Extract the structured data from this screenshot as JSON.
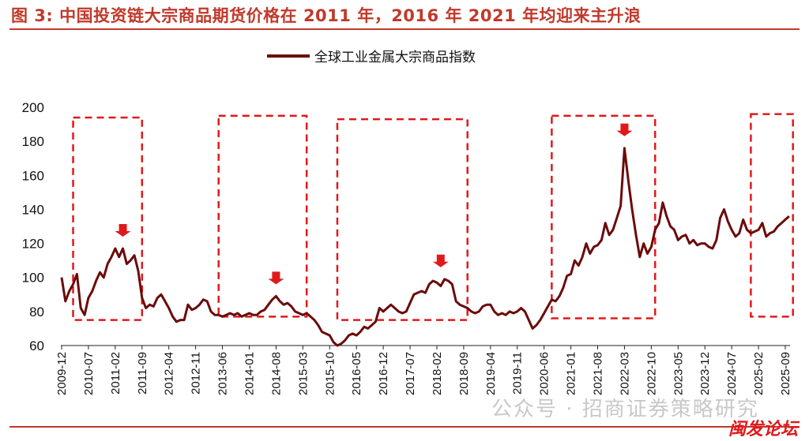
{
  "title": "图 3:  中国投资链大宗商品期货价格在 2011 年，2016 年 2021 年均迎来主升浪",
  "watermark": "公众号 · 招商证券策略研究",
  "forum_mark": "闽发论坛",
  "colors": {
    "series": "#6b0b0b",
    "highlight": "#e0191b",
    "title": "#c0392b"
  },
  "chart_data": {
    "type": "line",
    "title": "",
    "xlabel": "",
    "ylabel": "",
    "ylim": [
      60,
      200
    ],
    "yticks": [
      60,
      80,
      100,
      120,
      140,
      160,
      180,
      200
    ],
    "xticks": [
      "2009-12",
      "2010-07",
      "2011-02",
      "2011-09",
      "2012-04",
      "2012-11",
      "2013-06",
      "2014-01",
      "2014-08",
      "2015-03",
      "2015-10",
      "2016-05",
      "2016-12",
      "2017-07",
      "2018-02",
      "2018-09",
      "2019-04",
      "2019-11",
      "2020-06",
      "2021-01",
      "2021-08",
      "2022-03",
      "2022-10",
      "2023-05",
      "2023-12",
      "2024-07",
      "2025-02",
      "2025-09"
    ],
    "legend": "top-center",
    "grid": false,
    "series": [
      {
        "name": "全球工业金属大宗商品指数",
        "points": [
          [
            "2009-12",
            100
          ],
          [
            "2010-01",
            86
          ],
          [
            "2010-02",
            92
          ],
          [
            "2010-03",
            96
          ],
          [
            "2010-04",
            102
          ],
          [
            "2010-05",
            82
          ],
          [
            "2010-06",
            78
          ],
          [
            "2010-07",
            88
          ],
          [
            "2010-08",
            92
          ],
          [
            "2010-09",
            98
          ],
          [
            "2010-10",
            103
          ],
          [
            "2010-11",
            100
          ],
          [
            "2010-12",
            108
          ],
          [
            "2011-01",
            112
          ],
          [
            "2011-02",
            117
          ],
          [
            "2011-03",
            112
          ],
          [
            "2011-04",
            117
          ],
          [
            "2011-05",
            108
          ],
          [
            "2011-06",
            110
          ],
          [
            "2011-07",
            113
          ],
          [
            "2011-08",
            104
          ],
          [
            "2011-09",
            88
          ],
          [
            "2011-10",
            82
          ],
          [
            "2011-11",
            84
          ],
          [
            "2011-12",
            83
          ],
          [
            "2012-01",
            88
          ],
          [
            "2012-02",
            90
          ],
          [
            "2012-03",
            86
          ],
          [
            "2012-04",
            82
          ],
          [
            "2012-05",
            77
          ],
          [
            "2012-06",
            74
          ],
          [
            "2012-07",
            75
          ],
          [
            "2012-08",
            75
          ],
          [
            "2012-09",
            84
          ],
          [
            "2012-10",
            81
          ],
          [
            "2012-11",
            82
          ],
          [
            "2012-12",
            84
          ],
          [
            "2013-01",
            87
          ],
          [
            "2013-02",
            86
          ],
          [
            "2013-03",
            80
          ],
          [
            "2013-04",
            78
          ],
          [
            "2013-05",
            78
          ],
          [
            "2013-06",
            77
          ],
          [
            "2013-07",
            78
          ],
          [
            "2013-08",
            79
          ],
          [
            "2013-09",
            78
          ],
          [
            "2013-10",
            79
          ],
          [
            "2013-11",
            77
          ],
          [
            "2013-12",
            78
          ],
          [
            "2014-01",
            79
          ],
          [
            "2014-02",
            78
          ],
          [
            "2014-03",
            78
          ],
          [
            "2014-04",
            80
          ],
          [
            "2014-05",
            81
          ],
          [
            "2014-06",
            84
          ],
          [
            "2014-07",
            87
          ],
          [
            "2014-08",
            89
          ],
          [
            "2014-09",
            86
          ],
          [
            "2014-10",
            84
          ],
          [
            "2014-11",
            85
          ],
          [
            "2014-12",
            83
          ],
          [
            "2015-01",
            80
          ],
          [
            "2015-02",
            79
          ],
          [
            "2015-03",
            78
          ],
          [
            "2015-04",
            79
          ],
          [
            "2015-05",
            77
          ],
          [
            "2015-06",
            75
          ],
          [
            "2015-07",
            72
          ],
          [
            "2015-08",
            68
          ],
          [
            "2015-09",
            67
          ],
          [
            "2015-10",
            66
          ],
          [
            "2015-11",
            62
          ],
          [
            "2015-12",
            60
          ],
          [
            "2016-01",
            61
          ],
          [
            "2016-02",
            63
          ],
          [
            "2016-03",
            66
          ],
          [
            "2016-04",
            67
          ],
          [
            "2016-05",
            66
          ],
          [
            "2016-06",
            68
          ],
          [
            "2016-07",
            71
          ],
          [
            "2016-08",
            70
          ],
          [
            "2016-09",
            72
          ],
          [
            "2016-10",
            74
          ],
          [
            "2016-11",
            82
          ],
          [
            "2016-12",
            80
          ],
          [
            "2017-01",
            82
          ],
          [
            "2017-02",
            84
          ],
          [
            "2017-03",
            82
          ],
          [
            "2017-04",
            80
          ],
          [
            "2017-05",
            79
          ],
          [
            "2017-06",
            80
          ],
          [
            "2017-07",
            85
          ],
          [
            "2017-08",
            90
          ],
          [
            "2017-09",
            91
          ],
          [
            "2017-10",
            92
          ],
          [
            "2017-11",
            91
          ],
          [
            "2017-12",
            96
          ],
          [
            "2018-01",
            98
          ],
          [
            "2018-02",
            97
          ],
          [
            "2018-03",
            95
          ],
          [
            "2018-04",
            99
          ],
          [
            "2018-05",
            98
          ],
          [
            "2018-06",
            96
          ],
          [
            "2018-07",
            86
          ],
          [
            "2018-08",
            84
          ],
          [
            "2018-09",
            83
          ],
          [
            "2018-10",
            82
          ],
          [
            "2018-11",
            80
          ],
          [
            "2018-12",
            79
          ],
          [
            "2019-01",
            80
          ],
          [
            "2019-02",
            83
          ],
          [
            "2019-03",
            84
          ],
          [
            "2019-04",
            84
          ],
          [
            "2019-05",
            80
          ],
          [
            "2019-06",
            78
          ],
          [
            "2019-07",
            79
          ],
          [
            "2019-08",
            78
          ],
          [
            "2019-09",
            80
          ],
          [
            "2019-10",
            79
          ],
          [
            "2019-11",
            80
          ],
          [
            "2019-12",
            82
          ],
          [
            "2020-01",
            80
          ],
          [
            "2020-02",
            75
          ],
          [
            "2020-03",
            70
          ],
          [
            "2020-04",
            72
          ],
          [
            "2020-05",
            75
          ],
          [
            "2020-06",
            79
          ],
          [
            "2020-07",
            83
          ],
          [
            "2020-08",
            87
          ],
          [
            "2020-09",
            86
          ],
          [
            "2020-10",
            89
          ],
          [
            "2020-11",
            94
          ],
          [
            "2020-12",
            101
          ],
          [
            "2021-01",
            102
          ],
          [
            "2021-02",
            110
          ],
          [
            "2021-03",
            107
          ],
          [
            "2021-04",
            112
          ],
          [
            "2021-05",
            120
          ],
          [
            "2021-06",
            114
          ],
          [
            "2021-07",
            118
          ],
          [
            "2021-08",
            119
          ],
          [
            "2021-09",
            122
          ],
          [
            "2021-10",
            132
          ],
          [
            "2021-11",
            125
          ],
          [
            "2021-12",
            128
          ],
          [
            "2022-01",
            135
          ],
          [
            "2022-02",
            142
          ],
          [
            "2022-03",
            176
          ],
          [
            "2022-04",
            157
          ],
          [
            "2022-05",
            140
          ],
          [
            "2022-06",
            125
          ],
          [
            "2022-07",
            112
          ],
          [
            "2022-08",
            120
          ],
          [
            "2022-09",
            114
          ],
          [
            "2022-10",
            118
          ],
          [
            "2022-11",
            128
          ],
          [
            "2022-12",
            132
          ],
          [
            "2023-01",
            144
          ],
          [
            "2023-02",
            136
          ],
          [
            "2023-03",
            130
          ],
          [
            "2023-04",
            128
          ],
          [
            "2023-05",
            122
          ],
          [
            "2023-06",
            124
          ],
          [
            "2023-07",
            125
          ],
          [
            "2023-08",
            120
          ],
          [
            "2023-09",
            122
          ],
          [
            "2023-10",
            119
          ],
          [
            "2023-11",
            120
          ],
          [
            "2023-12",
            120
          ],
          [
            "2024-01",
            118
          ],
          [
            "2024-02",
            117
          ],
          [
            "2024-03",
            122
          ],
          [
            "2024-04",
            135
          ],
          [
            "2024-05",
            140
          ],
          [
            "2024-06",
            133
          ],
          [
            "2024-07",
            128
          ],
          [
            "2024-08",
            124
          ],
          [
            "2024-09",
            126
          ],
          [
            "2024-10",
            134
          ],
          [
            "2024-11",
            128
          ],
          [
            "2024-12",
            126
          ],
          [
            "2025-01",
            127
          ],
          [
            "2025-02",
            128
          ],
          [
            "2025-03",
            132
          ],
          [
            "2025-04",
            124
          ],
          [
            "2025-05",
            126
          ],
          [
            "2025-06",
            127
          ],
          [
            "2025-07",
            130
          ],
          [
            "2025-08",
            132
          ],
          [
            "2025-09",
            134
          ],
          [
            "2025-10",
            136
          ]
        ]
      }
    ],
    "highlight_boxes": [
      {
        "x_start": "2010-03",
        "x_end": "2011-09",
        "y_low": 75,
        "y_high": 194
      },
      {
        "x_start": "2013-05",
        "x_end": "2015-04",
        "y_low": 77,
        "y_high": 195
      },
      {
        "x_start": "2015-12",
        "x_end": "2018-10",
        "y_low": 75,
        "y_high": 193
      },
      {
        "x_start": "2020-08",
        "x_end": "2022-11",
        "y_low": 76,
        "y_high": 195
      },
      {
        "x_start": "2024-12",
        "x_end": "2025-11",
        "y_low": 77,
        "y_high": 196
      }
    ],
    "peak_arrows": [
      {
        "x": "2011-04",
        "y": 124
      },
      {
        "x": "2014-08",
        "y": 96
      },
      {
        "x": "2018-03",
        "y": 106
      },
      {
        "x": "2022-03",
        "y": 183
      }
    ]
  }
}
